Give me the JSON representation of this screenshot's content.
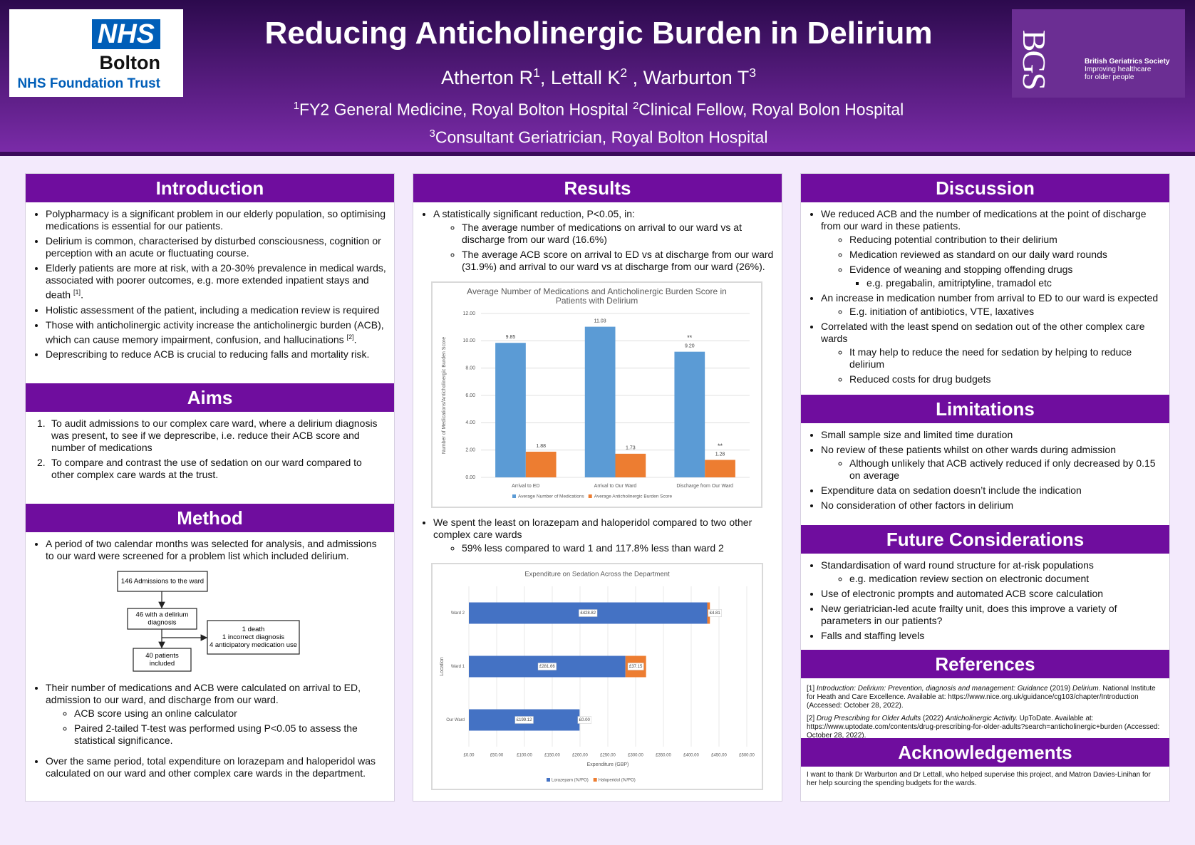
{
  "header": {
    "title": "Reducing Anticholinergic Burden in Delirium",
    "authors": [
      "Atherton R",
      "1",
      ", Lettall K",
      "2",
      " , Warburton T",
      "3"
    ],
    "affiliations": [
      [
        "1",
        "FY2 General Medicine, Royal Bolton Hospital ",
        "2",
        "Clinical Fellow, Royal Bolon Hospital"
      ],
      [
        "3",
        "Consultant Geriatrician, Royal Bolton Hospital"
      ]
    ],
    "logo_left": {
      "mark": "NHS",
      "name": "Bolton",
      "trust": "NHS Foundation Trust"
    },
    "logo_right": {
      "mark": "BGS",
      "lines": [
        "British Geriatrics Society",
        "Improving healthcare",
        "for older people"
      ]
    }
  },
  "columns": [
    [
      {
        "title": "Introduction",
        "blocks": [
          {
            "bullets": [
              "Polypharmacy is a significant problem in our elderly population, so optimising medications is essential for our patients.",
              "Delirium is common, characterised by disturbed consciousness, cognition or perception with an acute or fluctuating course.",
              {
                "text": "Elderly patients are more at risk, with a 20-30% prevalence in medical wards, associated with poorer outcomes, e.g. more extended inpatient stays and death ",
                "sup": "[1]",
                "tail": "."
              },
              "Holistic assessment of the patient, including a medication review is required",
              {
                "text": "Those with anticholinergic activity increase the anticholinergic burden (ACB), which can cause memory impairment, confusion, and hallucinations ",
                "sup": "[2]",
                "tail": "."
              },
              "Deprescribing to reduce ACB is crucial to reducing falls and mortality risk."
            ]
          }
        ]
      },
      {
        "title": "Aims",
        "blocks": [
          {
            "numbered": [
              {
                "marker": "1.",
                "text": "To audit admissions to our complex care ward, where a delirium diagnosis was present, to see if we deprescribe, i.e. reduce their ACB score and number of medications"
              },
              {
                "marker": "2.",
                "text": "To compare and contrast the use of sedation on our ward compared to other complex care wards at the trust."
              }
            ]
          }
        ]
      },
      {
        "title": "Method",
        "blocks": [
          {
            "bullets": [
              "A period of two calendar months was selected for analysis, and admissions to our ward were screened for a problem list which included delirium."
            ]
          },
          {
            "flowchart": {
              "nodes": [
                {
                  "lines": [
                    "146 Admissions to the ward"
                  ]
                },
                {
                  "lines": [
                    "46 with a delirium",
                    "diagnosis"
                  ]
                },
                {
                  "lines": [
                    "1 death",
                    "1 incorrect diagnosis",
                    "4 anticipatory medication use"
                  ]
                },
                {
                  "lines": [
                    "40 patients",
                    "included"
                  ]
                }
              ]
            }
          },
          {
            "bullets": [
              {
                "text": "Their number of medications and ACB were calculated on arrival to ED, admission to our ward, and discharge from our ward.",
                "sub": [
                  "ACB score using an online calculator",
                  "Paired 2-tailed T-test was performed using P<0.05 to assess the statistical significance."
                ]
              }
            ]
          },
          {
            "bullets": [
              "Over the same period, total expenditure on lorazepam and haloperidol was calculated on our ward and other complex care wards in the department."
            ]
          }
        ]
      }
    ],
    [
      {
        "title": "Results",
        "blocks": [
          {
            "bullets": [
              {
                "text": "A statistically significant reduction, P<0.05, in:",
                "sub": [
                  "The average number of medications on arrival to our ward vs at discharge from our ward (16.6%)",
                  "The average ACB score on arrival to ED vs at discharge from our ward (31.9%) and arrival to our ward vs at discharge from our ward (26%)."
                ]
              }
            ]
          },
          {
            "chart_data": {
              "type": "bar",
              "title": "Average Number of Medications and Anticholinergic Burden Score in Patients with Delirium",
              "ylabel": "Number of Medications/Anticholinergic Burden Score",
              "categories": [
                "Arrival to ED",
                "Arrival to Our Ward",
                "Discharge from Our Ward"
              ],
              "series": [
                {
                  "name": "Average Number of Medications",
                  "color": "#5b9bd5",
                  "values": [
                    9.85,
                    11.03,
                    9.2
                  ],
                  "value_labels": [
                    "9.85",
                    "11.03",
                    "9.20"
                  ],
                  "annotations": [
                    null,
                    null,
                    "**"
                  ]
                },
                {
                  "name": "Average Anticholinergic Burden Score",
                  "color": "#ed7d31",
                  "values": [
                    1.88,
                    1.73,
                    1.28
                  ],
                  "value_labels": [
                    "1.88",
                    "1.73",
                    "1.28"
                  ],
                  "annotations": [
                    null,
                    null,
                    "**"
                  ]
                }
              ],
              "ylim": [
                0,
                12
              ],
              "yticks": [
                {
                  "value": 0,
                  "label": "0.00"
                },
                {
                  "value": 2,
                  "label": "2.00"
                },
                {
                  "value": 4,
                  "label": "4.00"
                },
                {
                  "value": 6,
                  "label": "6.00"
                },
                {
                  "value": 8,
                  "label": "8.00"
                },
                {
                  "value": 10,
                  "label": "10.00"
                },
                {
                  "value": 12,
                  "label": "12.00"
                }
              ],
              "grid": true,
              "legend": "bottom"
            }
          },
          {
            "bullets": [
              {
                "text": "We spent the least on lorazepam and haloperidol compared to two other complex care wards",
                "sub": [
                  "59% less compared to ward 1 and 117.8% less than ward 2"
                ]
              }
            ]
          },
          {
            "chart_data": {
              "type": "bar",
              "orientation": "horizontal",
              "stacked": true,
              "title": "Expenditure on Sedation Across the Department",
              "xlabel": "Expenditure (GBP)",
              "ylabel": "Location",
              "categories": [
                "Ward 2",
                "Ward 1",
                "Our Ward"
              ],
              "series": [
                {
                  "name": "Lorazepam (IV/PO)",
                  "color": "#4472c4",
                  "values": [
                    428.82,
                    281.66,
                    199.12
                  ],
                  "value_labels": [
                    "£428.82",
                    "£281.66",
                    "£199.12"
                  ]
                },
                {
                  "name": "Haloperidol (IV/PO)",
                  "color": "#ed7d31",
                  "values": [
                    4.81,
                    37.15,
                    0
                  ],
                  "value_labels": [
                    "£4.81",
                    "£37.15",
                    "£0.00"
                  ]
                }
              ],
              "xlim": [
                0,
                500
              ],
              "xticks": [
                {
                  "value": 0,
                  "label": "£0.00"
                },
                {
                  "value": 50,
                  "label": "£50.00"
                },
                {
                  "value": 100,
                  "label": "£100.00"
                },
                {
                  "value": 150,
                  "label": "£150.00"
                },
                {
                  "value": 200,
                  "label": "£200.00"
                },
                {
                  "value": 250,
                  "label": "£250.00"
                },
                {
                  "value": 300,
                  "label": "£300.00"
                },
                {
                  "value": 350,
                  "label": "£350.00"
                },
                {
                  "value": 400,
                  "label": "£400.00"
                },
                {
                  "value": 450,
                  "label": "£450.00"
                },
                {
                  "value": 500,
                  "label": "£500.00"
                }
              ],
              "grid": true,
              "legend": "bottom"
            }
          }
        ]
      }
    ],
    [
      {
        "title": "Discussion",
        "blocks": [
          {
            "bullets": [
              {
                "text": "We reduced ACB and the number of medications at the point of discharge from our ward in these patients.",
                "sub": [
                  "Reducing potential contribution to their delirium",
                  "Medication reviewed as standard on our daily ward rounds",
                  {
                    "text": "Evidence of weaning and stopping offending drugs",
                    "sub": [
                      "e.g. pregabalin, amitriptyline, tramadol etc"
                    ]
                  }
                ]
              },
              {
                "text": "An increase in medication number from arrival to ED to our ward is expected",
                "sub": [
                  "E.g. initiation of antibiotics, VTE, laxatives"
                ]
              },
              {
                "text": "Correlated with the least spend on sedation out of the other complex care wards",
                "sub": [
                  "It may help to reduce the need for sedation by helping to reduce delirium",
                  "Reduced costs for drug budgets"
                ]
              }
            ]
          }
        ]
      },
      {
        "title": "Limitations",
        "blocks": [
          {
            "bullets": [
              "Small sample size and limited time duration",
              {
                "text": "No review of these patients whilst on other wards during admission",
                "sub": [
                  "Although unlikely that ACB actively reduced if only decreased by 0.15 on average"
                ]
              },
              "Expenditure data on sedation doesn’t include the indication",
              "No consideration of other factors in delirium"
            ]
          }
        ]
      },
      {
        "title": "Future Considerations",
        "blocks": [
          {
            "bullets": [
              {
                "text": "Standardisation of ward round structure for at-risk populations",
                "sub": [
                  "e.g. medication review section on electronic document"
                ]
              },
              "Use of electronic prompts and automated ACB score calculation",
              "New geriatrician-led acute frailty unit, does this improve a variety of parameters in our patients?",
              "Falls and staffing levels"
            ]
          }
        ]
      },
      {
        "title": "References",
        "blocks": [
          {
            "references": [
              [
                "[1] ",
                "Introduction: Delirium: Prevention, diagnosis and management: Guidance",
                " (2019) ",
                "Delirium.",
                " National Institute for Heath and Care Excellence. Available at: https://www.nice.org.uk/guidance/cg103/chapter/Introduction (Accessed: October 28, 2022)."
              ],
              [
                "[2] ",
                "Drug Prescribing for Older Adults",
                " (2022) ",
                "Anticholinergic Activity.",
                " UpToDate. Available at: https://www.uptodate.com/contents/drug-prescribing-for-older-adults?search=anticholinergic+burden (Accessed: October 28, 2022)."
              ]
            ]
          }
        ]
      },
      {
        "title": "Acknowledgements",
        "blocks": [
          {
            "paragraph": "I want to thank Dr Warburton and Dr Lettall, who helped supervise this project, and Matron Davies-Linihan for her help sourcing the spending budgets for the wards."
          }
        ]
      }
    ]
  ]
}
